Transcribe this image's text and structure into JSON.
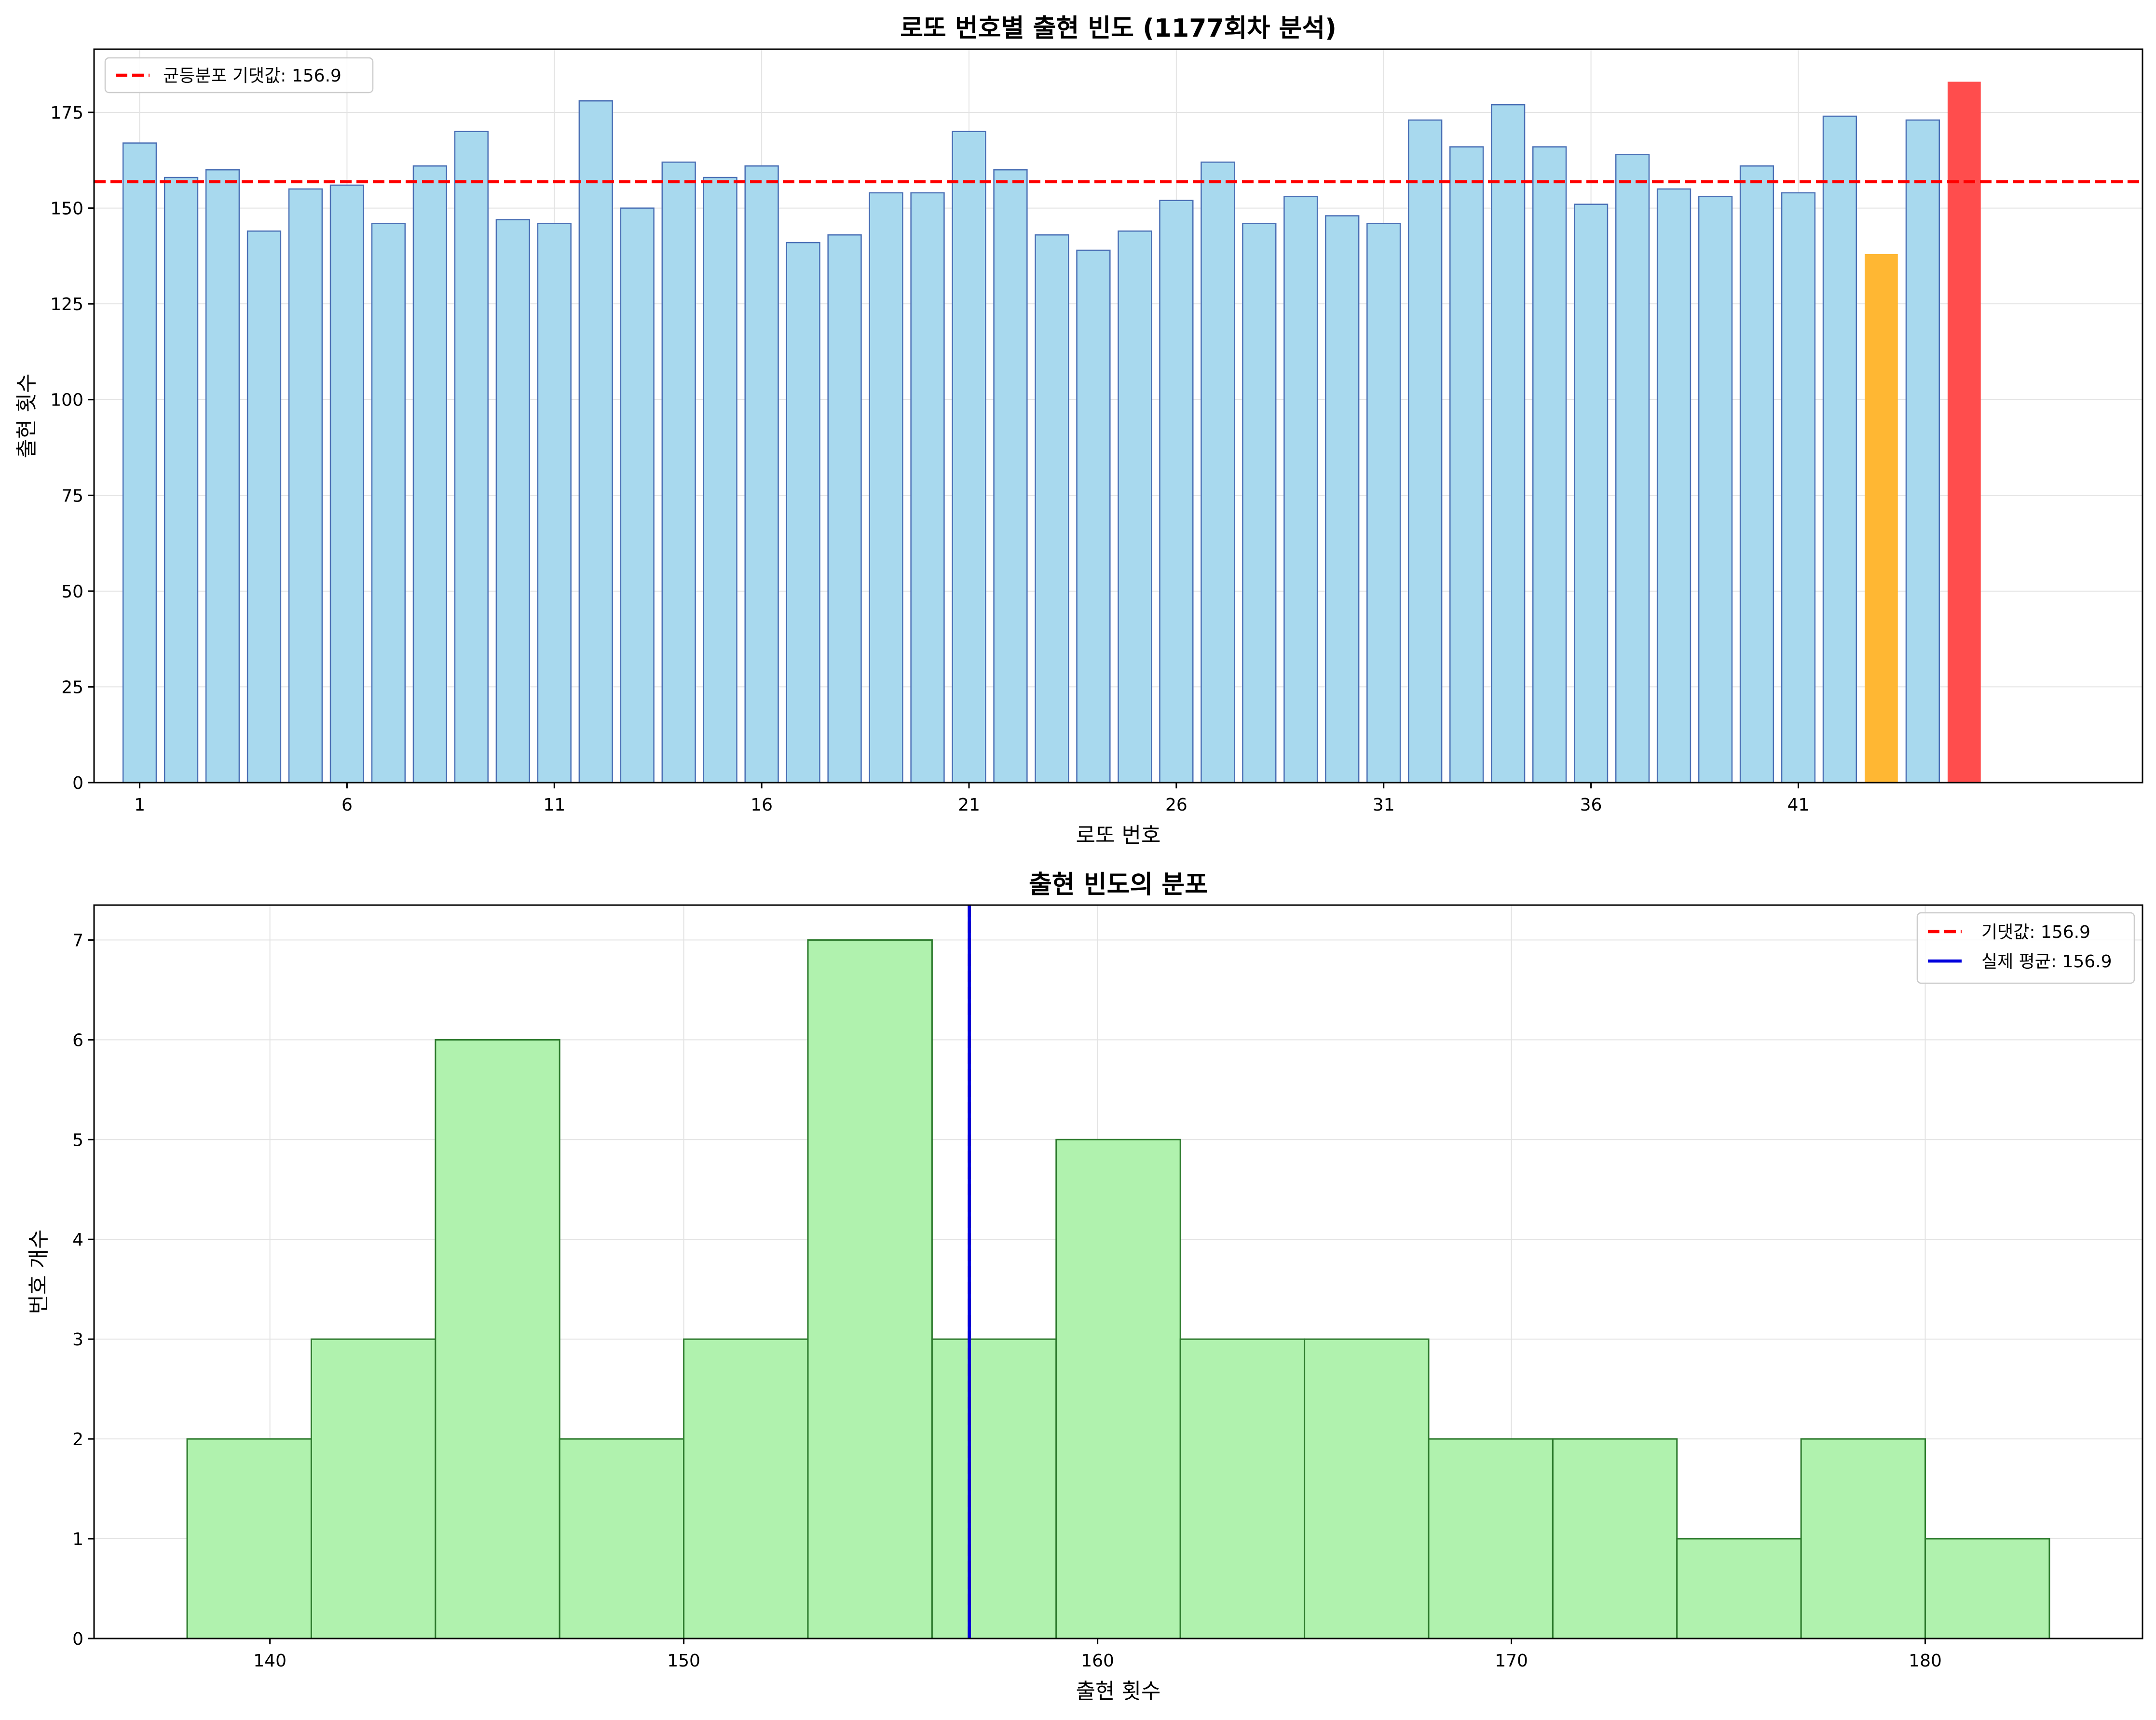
{
  "chart_data": [
    {
      "type": "bar",
      "title": "로또 번호별 출현 빈도 (1177회차 분석)",
      "xlabel": "로또 번호",
      "ylabel": "출현 횟수",
      "categories": [
        1,
        2,
        3,
        4,
        5,
        6,
        7,
        8,
        9,
        10,
        11,
        12,
        13,
        14,
        15,
        16,
        17,
        18,
        19,
        20,
        21,
        22,
        23,
        24,
        25,
        26,
        27,
        28,
        29,
        30,
        31,
        32,
        33,
        34,
        35,
        36,
        37,
        38,
        39,
        40,
        41,
        42,
        43,
        44,
        45
      ],
      "values": [
        167,
        158,
        160,
        144,
        155,
        156,
        146,
        161,
        170,
        147,
        146,
        178,
        150,
        162,
        158,
        161,
        141,
        143,
        154,
        154,
        170,
        160,
        143,
        139,
        144,
        152,
        162,
        146,
        153,
        148,
        146,
        173,
        166,
        177,
        166,
        151,
        164,
        155,
        153,
        161,
        154,
        174,
        138,
        173,
        183
      ],
      "highlight": {
        "43": "#ffb733",
        "45": "#ff4d4d"
      },
      "bar_color": "#a8d9ee",
      "bar_edge": "#4a6fb5",
      "xticks": [
        "1",
        "6",
        "11",
        "16",
        "21",
        "26",
        "31",
        "36",
        "41"
      ],
      "yticks": [
        "0",
        "25",
        "50",
        "75",
        "100",
        "125",
        "150",
        "175"
      ],
      "xlim": [
        -1.1,
        48.3
      ],
      "ylim": [
        0,
        191.5
      ],
      "grid": true,
      "hline": {
        "value": 156.9,
        "color": "#ff0000",
        "style": "dashed"
      },
      "legend": {
        "position": "upper-left",
        "entries": [
          {
            "label": "균등분포 기댓값: 156.9",
            "color": "#ff0000",
            "style": "dashed"
          }
        ]
      }
    },
    {
      "type": "histogram",
      "title": "출현 빈도의 분포",
      "xlabel": "출현 횟수",
      "ylabel": "번호 개수",
      "bin_edges": [
        138,
        141,
        144,
        147,
        150,
        153,
        156,
        159,
        162,
        165,
        168,
        171,
        174,
        177,
        180,
        183
      ],
      "counts": [
        2,
        3,
        6,
        2,
        3,
        7,
        3,
        5,
        3,
        3,
        2,
        2,
        1,
        2,
        1
      ],
      "bar_color": "#b0f2ae",
      "bar_edge": "#2d7a2d",
      "xticks": [
        "140",
        "150",
        "160",
        "170",
        "180"
      ],
      "yticks": [
        "0",
        "1",
        "2",
        "3",
        "4",
        "5",
        "6",
        "7"
      ],
      "xlim": [
        135.75,
        185.25
      ],
      "ylim": [
        0,
        7.35
      ],
      "grid": true,
      "vlines": [
        {
          "value": 156.9,
          "color": "#ff0000",
          "style": "dashed"
        },
        {
          "value": 156.9,
          "color": "#0000dd",
          "style": "solid"
        }
      ],
      "legend": {
        "position": "upper-right",
        "entries": [
          {
            "label": "기댓값: 156.9",
            "color": "#ff0000",
            "style": "dashed"
          },
          {
            "label": "실제 평균: 156.9",
            "color": "#0000dd",
            "style": "solid"
          }
        ]
      }
    }
  ]
}
